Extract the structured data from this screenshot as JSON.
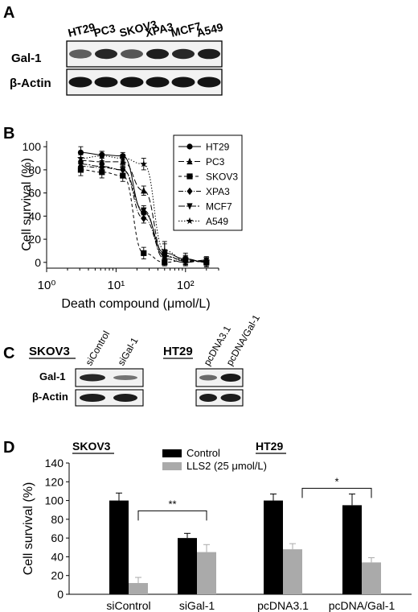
{
  "panels": {
    "A": {
      "letter": "A",
      "cell_lines": [
        "HT29",
        "PC3",
        "SKOV3",
        "XPA3",
        "MCF7",
        "A549"
      ],
      "row_labels": [
        "Gal-1",
        "β-Actin"
      ],
      "gal1_intensity": [
        0.55,
        0.85,
        0.6,
        0.9,
        0.85,
        0.9
      ]
    },
    "B": {
      "letter": "B"
    },
    "C": {
      "letter": "C",
      "left_title": "SKOV3",
      "right_title": "HT29",
      "left_lanes": [
        "siControl",
        "siGal-1"
      ],
      "right_lanes": [
        "pcDNA3.1",
        "pcDNA/Gal-1"
      ],
      "row_labels": [
        "Gal-1",
        "β-Actin"
      ]
    },
    "D": {
      "letter": "D",
      "group_titles": [
        "SKOV3",
        "HT29"
      ],
      "sig_left": "**",
      "sig_right": "*"
    }
  },
  "chart_data": [
    {
      "type": "line",
      "xlabel": "Death compound (μmol/L)",
      "ylabel": "Cell survival (%)",
      "xscale": "log",
      "xlim": [
        1,
        300
      ],
      "ylim": [
        -5,
        105
      ],
      "x_ticks": [
        "10⁰",
        "10¹",
        "10²"
      ],
      "y_ticks": [
        0,
        20,
        40,
        60,
        80,
        100
      ],
      "legend_position": "top-right",
      "x": [
        3.1,
        6.25,
        12.5,
        25,
        50,
        100,
        200
      ],
      "series": [
        {
          "name": "HT29",
          "marker": "circle",
          "dash": "solid",
          "values": [
            95,
            93,
            92,
            43,
            8,
            3,
            0
          ],
          "errors": [
            5,
            3,
            3,
            4,
            8,
            5,
            4
          ]
        },
        {
          "name": "PC3",
          "marker": "triangle",
          "dash": "long",
          "values": [
            88,
            87,
            87,
            62,
            5,
            2,
            1
          ],
          "errors": [
            5,
            4,
            4,
            4,
            6,
            4,
            3
          ]
        },
        {
          "name": "SKOV3",
          "marker": "square",
          "dash": "dash",
          "values": [
            80,
            78,
            75,
            8,
            0,
            2,
            0
          ],
          "errors": [
            5,
            5,
            5,
            5,
            3,
            3,
            3
          ]
        },
        {
          "name": "XPA3",
          "marker": "diamond",
          "dash": "dashdot",
          "values": [
            83,
            82,
            80,
            38,
            6,
            1,
            1
          ],
          "errors": [
            5,
            4,
            4,
            4,
            5,
            3,
            3
          ]
        },
        {
          "name": "MCF7",
          "marker": "tri-down",
          "dash": "longdot",
          "values": [
            85,
            83,
            80,
            45,
            3,
            0,
            2
          ],
          "errors": [
            5,
            4,
            5,
            4,
            5,
            3,
            3
          ]
        },
        {
          "name": "A549",
          "marker": "star",
          "dash": "dot",
          "values": [
            90,
            92,
            90,
            85,
            10,
            2,
            1
          ],
          "errors": [
            5,
            4,
            3,
            5,
            8,
            4,
            3
          ]
        }
      ]
    },
    {
      "type": "bar",
      "ylabel": "Cell survival (%)",
      "ylim": [
        0,
        140
      ],
      "y_ticks": [
        0,
        20,
        40,
        60,
        80,
        100,
        120,
        140
      ],
      "categories": [
        "siControl",
        "siGal-1",
        "pcDNA3.1",
        "pcDNA/Gal-1"
      ],
      "legend_position": "top-center",
      "series": [
        {
          "name": "Control",
          "color": "#000000",
          "values": [
            100,
            60,
            100,
            95
          ],
          "errors": [
            8,
            5,
            7,
            12
          ]
        },
        {
          "name": "LLS2 (25 μmol/L)",
          "color": "#aaaaaa",
          "values": [
            12,
            45,
            48,
            34
          ],
          "errors": [
            6,
            8,
            6,
            5
          ]
        }
      ]
    }
  ]
}
